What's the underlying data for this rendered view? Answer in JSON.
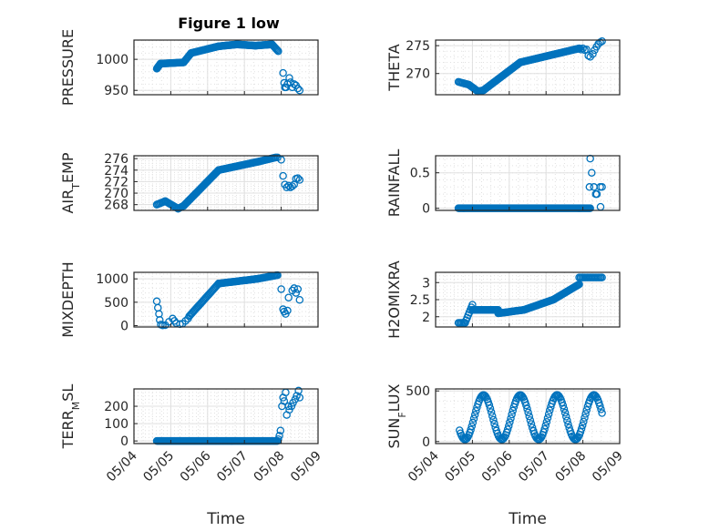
{
  "figure": {
    "title": "Figure 1 low"
  },
  "colors": {
    "marker": "#0072BD",
    "grid": "#E0E0E0",
    "axis": "#262626"
  },
  "chart_data": [
    {
      "id": "pressure",
      "type": "scatter",
      "ylabel": "PRESSURE",
      "ylim": [
        943,
        1031
      ],
      "yticks": [
        950,
        1000
      ],
      "xlim": [
        "05/04",
        "05/09"
      ],
      "grid": true,
      "show_xticks": false,
      "segments": [
        {
          "x0": 4.62,
          "x1": 4.72,
          "y0": 985,
          "y1": 993,
          "n": 8
        },
        {
          "x0": 4.72,
          "x1": 5.35,
          "y0": 993,
          "y1": 995,
          "n": 30
        },
        {
          "x0": 5.35,
          "x1": 5.55,
          "y0": 995,
          "y1": 1010,
          "n": 10
        },
        {
          "x0": 5.55,
          "x1": 6.3,
          "y0": 1010,
          "y1": 1021,
          "n": 35
        },
        {
          "x0": 6.3,
          "x1": 6.8,
          "y0": 1021,
          "y1": 1024,
          "n": 25
        },
        {
          "x0": 6.8,
          "x1": 7.3,
          "y0": 1024,
          "y1": 1022,
          "n": 25
        },
        {
          "x0": 7.3,
          "x1": 7.75,
          "y0": 1022,
          "y1": 1024,
          "n": 20
        },
        {
          "x0": 7.75,
          "x1": 7.92,
          "y0": 1024,
          "y1": 1013,
          "n": 8
        }
      ],
      "points": [
        [
          8.05,
          978
        ],
        [
          8.08,
          962
        ],
        [
          8.1,
          955
        ],
        [
          8.13,
          955
        ],
        [
          8.17,
          960
        ],
        [
          8.22,
          970
        ],
        [
          8.25,
          963
        ],
        [
          8.3,
          955
        ],
        [
          8.35,
          960
        ],
        [
          8.4,
          958
        ],
        [
          8.45,
          953
        ],
        [
          8.5,
          950
        ]
      ]
    },
    {
      "id": "theta",
      "type": "scatter",
      "ylabel": "THETA",
      "ylim": [
        266.2,
        276
      ],
      "yticks": [
        270,
        275
      ],
      "xlim": [
        "05/04",
        "05/09"
      ],
      "grid": true,
      "show_xticks": false,
      "segments": [
        {
          "x0": 4.62,
          "x1": 4.9,
          "y0": 268.5,
          "y1": 268,
          "n": 10
        },
        {
          "x0": 4.9,
          "x1": 5.15,
          "y0": 268,
          "y1": 266.8,
          "n": 10
        },
        {
          "x0": 5.15,
          "x1": 5.3,
          "y0": 266.8,
          "y1": 267,
          "n": 6
        },
        {
          "x0": 5.3,
          "x1": 6.3,
          "y0": 267,
          "y1": 272,
          "n": 60
        },
        {
          "x0": 6.3,
          "x1": 7.9,
          "y0": 272,
          "y1": 274.5,
          "n": 70
        }
      ],
      "points": [
        [
          7.9,
          274.5
        ],
        [
          7.95,
          274.3
        ],
        [
          8.0,
          274.5
        ],
        [
          8.05,
          274.2
        ],
        [
          8.1,
          274.3
        ],
        [
          8.15,
          273.2
        ],
        [
          8.2,
          273.0
        ],
        [
          8.27,
          273.5
        ],
        [
          8.32,
          274.2
        ],
        [
          8.37,
          274.8
        ],
        [
          8.42,
          275.3
        ],
        [
          8.47,
          275.6
        ],
        [
          8.52,
          275.8
        ]
      ]
    },
    {
      "id": "airtemp",
      "type": "scatter",
      "ylabel": "AIR_TEMP",
      "ylabel_display": "AIR",
      "ylabel_sub": "T",
      "ylabel_rest": "EMP",
      "ylim": [
        267,
        276.5
      ],
      "yticks": [
        268,
        270,
        272,
        274,
        276
      ],
      "xlim": [
        "05/04",
        "05/09"
      ],
      "grid": true,
      "show_xticks": false,
      "segments": [
        {
          "x0": 4.62,
          "x1": 4.85,
          "y0": 268,
          "y1": 268.6,
          "n": 8
        },
        {
          "x0": 4.85,
          "x1": 5.2,
          "y0": 268.6,
          "y1": 267.3,
          "n": 12
        },
        {
          "x0": 5.2,
          "x1": 5.35,
          "y0": 267.3,
          "y1": 267.8,
          "n": 6
        },
        {
          "x0": 5.35,
          "x1": 6.3,
          "y0": 267.8,
          "y1": 274,
          "n": 55
        },
        {
          "x0": 6.3,
          "x1": 7.4,
          "y0": 274,
          "y1": 275.5,
          "n": 45
        },
        {
          "x0": 7.4,
          "x1": 7.85,
          "y0": 275.5,
          "y1": 276.2,
          "n": 15
        }
      ],
      "points": [
        [
          7.9,
          276.2
        ],
        [
          8.0,
          275.8
        ],
        [
          8.05,
          273
        ],
        [
          8.1,
          271.5
        ],
        [
          8.15,
          271
        ],
        [
          8.2,
          271.3
        ],
        [
          8.25,
          271
        ],
        [
          8.3,
          271.2
        ],
        [
          8.35,
          271.5
        ],
        [
          8.4,
          272.5
        ],
        [
          8.45,
          272.6
        ],
        [
          8.5,
          272.3
        ]
      ]
    },
    {
      "id": "rainfall",
      "type": "scatter",
      "ylabel": "RAINFALL",
      "ylim": [
        -0.03,
        0.74
      ],
      "yticks": [
        0,
        0.5
      ],
      "yticklabels": [
        "0",
        "0.5"
      ],
      "xlim": [
        "05/04",
        "05/09"
      ],
      "grid": true,
      "show_xticks": false,
      "segments": [
        {
          "x0": 4.62,
          "x1": 8.2,
          "y0": 0,
          "y1": 0,
          "n": 150
        }
      ],
      "points": [
        [
          8.2,
          0.7
        ],
        [
          8.24,
          0.5
        ],
        [
          8.18,
          0.3
        ],
        [
          8.3,
          0.3
        ],
        [
          8.35,
          0.2
        ],
        [
          8.38,
          0.2
        ],
        [
          8.47,
          0.3
        ],
        [
          8.52,
          0.3
        ],
        [
          8.48,
          0.02
        ]
      ]
    },
    {
      "id": "mixdepth",
      "type": "scatter",
      "ylabel": "MIXDEPTH",
      "ylim": [
        -30,
        1140
      ],
      "yticks": [
        0,
        500,
        1000
      ],
      "xlim": [
        "05/04",
        "05/09"
      ],
      "grid": true,
      "show_xticks": false,
      "segments": [
        {
          "x0": 5.5,
          "x1": 6.3,
          "y0": 200,
          "y1": 900,
          "n": 30
        },
        {
          "x0": 6.3,
          "x1": 7.35,
          "y0": 900,
          "y1": 1000,
          "n": 45
        },
        {
          "x0": 7.35,
          "x1": 7.9,
          "y0": 1000,
          "y1": 1080,
          "n": 20
        }
      ],
      "points": [
        [
          4.62,
          520
        ],
        [
          4.65,
          380
        ],
        [
          4.68,
          250
        ],
        [
          4.7,
          120
        ],
        [
          4.73,
          20
        ],
        [
          4.78,
          5
        ],
        [
          4.85,
          10
        ],
        [
          4.95,
          80
        ],
        [
          5.05,
          150
        ],
        [
          5.1,
          100
        ],
        [
          5.15,
          50
        ],
        [
          5.25,
          30
        ],
        [
          5.32,
          40
        ],
        [
          5.4,
          100
        ],
        [
          5.47,
          150
        ],
        [
          8.0,
          780
        ],
        [
          8.05,
          350
        ],
        [
          8.08,
          300
        ],
        [
          8.12,
          250
        ],
        [
          8.17,
          320
        ],
        [
          8.2,
          600
        ],
        [
          8.3,
          750
        ],
        [
          8.35,
          800
        ],
        [
          8.4,
          700
        ],
        [
          8.45,
          780
        ],
        [
          8.5,
          550
        ]
      ]
    },
    {
      "id": "h2omixra",
      "type": "scatter",
      "ylabel": "H2OMIXRA",
      "ylim": [
        1.7,
        3.3
      ],
      "yticks": [
        2,
        2.5,
        3
      ],
      "yticklabels": [
        "2",
        "2.5",
        "3"
      ],
      "xlim": [
        "05/04",
        "05/09"
      ],
      "grid": true,
      "show_xticks": false,
      "segments": [
        {
          "x0": 4.62,
          "x1": 4.8,
          "y0": 1.82,
          "y1": 1.82,
          "n": 6
        },
        {
          "x0": 4.8,
          "x1": 5.0,
          "y0": 1.82,
          "y1": 2.35,
          "n": 8
        },
        {
          "x0": 5.0,
          "x1": 5.7,
          "y0": 2.2,
          "y1": 2.2,
          "n": 30
        },
        {
          "x0": 5.7,
          "x1": 6.4,
          "y0": 2.1,
          "y1": 2.2,
          "n": 30
        },
        {
          "x0": 6.4,
          "x1": 7.2,
          "y0": 2.2,
          "y1": 2.5,
          "n": 35
        },
        {
          "x0": 7.2,
          "x1": 7.9,
          "y0": 2.5,
          "y1": 2.95,
          "n": 30
        },
        {
          "x0": 7.9,
          "x1": 8.52,
          "y0": 3.15,
          "y1": 3.15,
          "n": 18
        }
      ],
      "points": []
    },
    {
      "id": "terrmsl",
      "type": "scatter",
      "ylabel": "TERR_MSL",
      "ylabel_display": "TERR",
      "ylabel_sub": "M",
      "ylabel_rest": "SL",
      "ylim": [
        -15,
        300
      ],
      "yticks": [
        0,
        100,
        200
      ],
      "xlim": [
        "05/04",
        "05/09"
      ],
      "grid": true,
      "show_xticks": true,
      "xticks": [
        "05/04",
        "05/05",
        "05/06",
        "05/07",
        "05/08",
        "05/09"
      ],
      "xlabel": "Time",
      "segments": [
        {
          "x0": 4.62,
          "x1": 7.9,
          "y0": 0,
          "y1": 0,
          "n": 150
        }
      ],
      "points": [
        [
          7.92,
          10
        ],
        [
          7.95,
          30
        ],
        [
          7.98,
          60
        ],
        [
          8.02,
          200
        ],
        [
          8.05,
          250
        ],
        [
          8.08,
          230
        ],
        [
          8.12,
          280
        ],
        [
          8.15,
          150
        ],
        [
          8.2,
          200
        ],
        [
          8.22,
          180
        ],
        [
          8.28,
          200
        ],
        [
          8.32,
          220
        ],
        [
          8.38,
          240
        ],
        [
          8.42,
          260
        ],
        [
          8.47,
          290
        ],
        [
          8.5,
          250
        ]
      ]
    },
    {
      "id": "sunflux",
      "type": "scatter",
      "ylabel": "SUN_FLUX",
      "ylabel_display": "SUN",
      "ylabel_sub": "F",
      "ylabel_rest": "LUX",
      "ylim": [
        -20,
        520
      ],
      "yticks": [
        0,
        500
      ],
      "xlim": [
        "05/04",
        "05/09"
      ],
      "grid": true,
      "show_xticks": true,
      "xticks": [
        "05/04",
        "05/05",
        "05/06",
        "05/07",
        "05/08",
        "05/09"
      ],
      "xlabel": "Time",
      "diurnal": {
        "x0": 4.65,
        "x1": 8.52,
        "min": 20,
        "max": 460,
        "period": 1.0,
        "phase": 0.3,
        "n": 140
      },
      "segments": [],
      "points": []
    }
  ]
}
